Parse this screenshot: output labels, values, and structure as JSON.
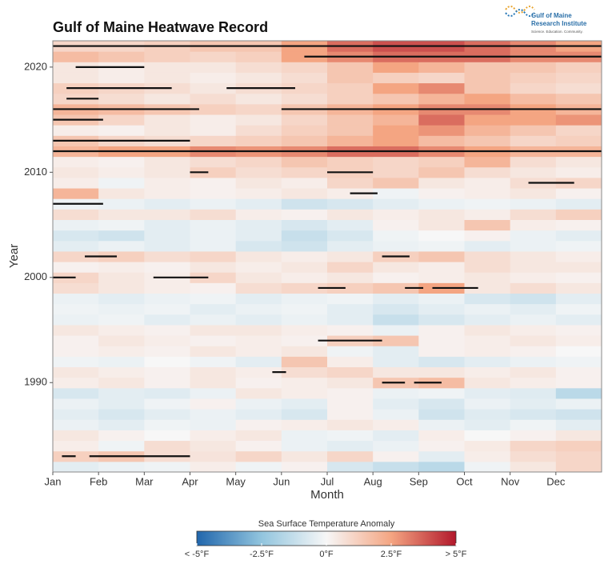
{
  "logo": {
    "line1": "Gulf of Maine",
    "line2": "Research Institute",
    "tagline": "Science. Education. Community."
  },
  "chart_data": {
    "type": "heatmap",
    "title": "Gulf of Maine Heatwave Record",
    "x_label": "Month",
    "y_label": "Year",
    "xlim": [
      0,
      12
    ],
    "xticks": [
      {
        "value": 0,
        "label": "Jan"
      },
      {
        "value": 1,
        "label": "Feb"
      },
      {
        "value": 2,
        "label": "Mar"
      },
      {
        "value": 3,
        "label": "Apr"
      },
      {
        "value": 4,
        "label": "May"
      },
      {
        "value": 5,
        "label": "Jun"
      },
      {
        "value": 6,
        "label": "Jul"
      },
      {
        "value": 7,
        "label": "Aug"
      },
      {
        "value": 8,
        "label": "Sep"
      },
      {
        "value": 9,
        "label": "Oct"
      },
      {
        "value": 10,
        "label": "Nov"
      },
      {
        "value": 11,
        "label": "Dec"
      }
    ],
    "ylim": [
      1981.5,
      2022.5
    ],
    "yticks": [
      1990,
      2000,
      2010,
      2020
    ],
    "years": [
      1982,
      1983,
      1984,
      1985,
      1986,
      1987,
      1988,
      1989,
      1990,
      1991,
      1992,
      1993,
      1994,
      1995,
      1996,
      1997,
      1998,
      1999,
      2000,
      2001,
      2002,
      2003,
      2004,
      2005,
      2006,
      2007,
      2008,
      2009,
      2010,
      2011,
      2012,
      2013,
      2014,
      2015,
      2016,
      2017,
      2018,
      2019,
      2020,
      2021,
      2022
    ],
    "values": [
      [
        -0.5,
        -0.3,
        -0.2,
        0.3,
        -0.2,
        0.2,
        -0.8,
        -1.2,
        -1.5,
        -0.2,
        0.5,
        1.0
      ],
      [
        1.2,
        1.5,
        0.8,
        0.6,
        1.0,
        0.5,
        1.0,
        0.2,
        -0.5,
        0.3,
        0.8,
        1.0
      ],
      [
        0.3,
        -0.2,
        0.8,
        0.5,
        0.2,
        -0.3,
        -0.5,
        -0.3,
        0.2,
        0.4,
        1.0,
        1.2
      ],
      [
        0.5,
        0.2,
        0.0,
        0.3,
        0.5,
        -0.3,
        -0.2,
        -0.5,
        0.3,
        0.0,
        0.2,
        0.5
      ],
      [
        -0.3,
        -0.5,
        -0.2,
        -0.3,
        0.2,
        0.3,
        0.5,
        0.3,
        -0.3,
        -0.5,
        -0.2,
        -0.5
      ],
      [
        -0.5,
        -0.8,
        -0.5,
        -0.3,
        -0.5,
        -0.8,
        0.2,
        -0.3,
        -1.0,
        -0.6,
        -0.8,
        -1.0
      ],
      [
        -0.3,
        -0.5,
        -0.2,
        0.2,
        -0.3,
        -0.5,
        0.2,
        -0.5,
        -0.8,
        -0.3,
        -0.5,
        -0.3
      ],
      [
        -0.8,
        -0.5,
        -0.6,
        -0.3,
        0.5,
        0.3,
        0.2,
        -0.3,
        -0.2,
        -0.5,
        -0.6,
        -1.5
      ],
      [
        0.3,
        0.5,
        0.2,
        0.5,
        0.2,
        0.3,
        0.5,
        1.5,
        1.8,
        0.5,
        0.3,
        0.2
      ],
      [
        0.5,
        0.3,
        0.2,
        0.5,
        0.3,
        0.8,
        1.0,
        0.5,
        0.5,
        0.3,
        0.5,
        0.2
      ],
      [
        -0.2,
        -0.3,
        0.0,
        -0.2,
        -0.5,
        1.5,
        0.3,
        -0.5,
        -0.8,
        -0.5,
        -0.3,
        -0.2
      ],
      [
        0.2,
        0.3,
        0.2,
        0.5,
        0.3,
        0.5,
        -0.2,
        -0.5,
        0.2,
        0.3,
        0.2,
        0.0
      ],
      [
        0.2,
        0.5,
        0.3,
        0.2,
        0.3,
        0.2,
        1.2,
        1.5,
        0.2,
        0.3,
        0.5,
        0.3
      ],
      [
        0.5,
        0.3,
        0.2,
        0.5,
        0.5,
        0.3,
        0.2,
        -0.3,
        0.2,
        0.5,
        0.3,
        0.2
      ],
      [
        -0.3,
        -0.2,
        -0.5,
        -0.3,
        -0.5,
        -0.3,
        -0.5,
        -1.2,
        -0.8,
        -0.5,
        -0.3,
        -0.5
      ],
      [
        -0.2,
        -0.3,
        -0.2,
        -0.5,
        -0.3,
        -0.2,
        -0.5,
        -0.8,
        -0.5,
        -0.3,
        -0.5,
        -0.2
      ],
      [
        -0.3,
        -0.5,
        -0.3,
        -0.2,
        -0.5,
        -0.3,
        -0.2,
        -0.5,
        -0.3,
        -0.8,
        -1.0,
        -0.5
      ],
      [
        0.8,
        0.5,
        0.3,
        0.2,
        0.8,
        1.0,
        1.2,
        1.5,
        2.5,
        0.5,
        0.8,
        0.5
      ],
      [
        1.0,
        0.5,
        0.3,
        1.0,
        0.5,
        0.3,
        0.5,
        0.2,
        0.3,
        0.5,
        0.3,
        0.2
      ],
      [
        0.2,
        0.3,
        0.2,
        0.5,
        0.3,
        0.5,
        1.0,
        0.5,
        0.3,
        0.8,
        0.5,
        0.5
      ],
      [
        1.0,
        1.2,
        0.8,
        1.0,
        0.5,
        0.3,
        0.5,
        1.2,
        1.5,
        0.8,
        0.5,
        0.3
      ],
      [
        -0.5,
        -0.3,
        -0.5,
        -0.3,
        -0.8,
        -1.0,
        -0.5,
        -0.3,
        -0.2,
        -0.5,
        -0.3,
        -0.2
      ],
      [
        -0.8,
        -1.0,
        -0.5,
        -0.3,
        -0.5,
        -1.2,
        -0.8,
        -0.2,
        0.0,
        0.2,
        -0.3,
        -0.5
      ],
      [
        -0.3,
        -0.2,
        -0.5,
        -0.3,
        -0.5,
        -0.8,
        -0.5,
        0.2,
        0.5,
        1.5,
        0.3,
        0.2
      ],
      [
        0.8,
        0.5,
        0.5,
        0.8,
        0.3,
        0.2,
        0.5,
        0.3,
        0.5,
        0.3,
        0.8,
        1.2
      ],
      [
        -0.2,
        -0.3,
        -0.5,
        -0.3,
        -0.5,
        -1.0,
        -0.8,
        -0.5,
        -0.3,
        -0.2,
        -0.3,
        -0.5
      ],
      [
        2.0,
        0.5,
        0.3,
        0.2,
        0.3,
        0.5,
        0.3,
        -0.2,
        0.2,
        0.3,
        0.5,
        0.2
      ],
      [
        0.3,
        -0.2,
        0.3,
        0.2,
        0.5,
        0.3,
        1.0,
        1.5,
        0.5,
        0.3,
        0.8,
        1.0
      ],
      [
        0.5,
        0.3,
        0.5,
        1.2,
        0.8,
        1.0,
        1.2,
        1.0,
        1.5,
        0.8,
        0.5,
        0.3
      ],
      [
        0.3,
        0.2,
        0.5,
        0.8,
        1.0,
        1.5,
        1.2,
        1.0,
        1.2,
        2.0,
        0.8,
        0.5
      ],
      [
        2.0,
        2.5,
        2.5,
        3.0,
        2.8,
        3.0,
        3.5,
        3.5,
        3.0,
        2.5,
        2.0,
        2.0
      ],
      [
        1.5,
        1.0,
        0.8,
        1.0,
        1.2,
        1.5,
        2.0,
        2.5,
        1.8,
        1.5,
        1.0,
        1.2
      ],
      [
        0.3,
        0.2,
        0.5,
        0.3,
        0.8,
        1.2,
        1.5,
        2.5,
        2.8,
        2.0,
        1.5,
        1.0
      ],
      [
        1.5,
        1.0,
        0.5,
        0.3,
        0.5,
        1.0,
        1.5,
        2.0,
        3.5,
        2.5,
        2.5,
        2.8
      ],
      [
        2.0,
        1.8,
        1.5,
        1.2,
        1.0,
        1.5,
        2.0,
        2.5,
        3.0,
        3.0,
        2.5,
        2.0
      ],
      [
        1.0,
        0.8,
        0.5,
        0.8,
        0.5,
        0.8,
        1.2,
        1.5,
        2.0,
        2.5,
        1.8,
        1.5
      ],
      [
        1.2,
        1.0,
        0.8,
        0.5,
        0.8,
        1.0,
        1.2,
        2.5,
        3.0,
        1.5,
        1.0,
        0.8
      ],
      [
        0.5,
        0.3,
        0.5,
        0.3,
        0.5,
        0.8,
        1.5,
        1.2,
        1.0,
        1.5,
        1.2,
        1.0
      ],
      [
        0.5,
        0.3,
        0.5,
        0.5,
        0.8,
        1.0,
        1.5,
        2.5,
        2.0,
        1.5,
        1.5,
        1.2
      ],
      [
        1.8,
        1.5,
        1.2,
        1.0,
        1.2,
        2.5,
        3.0,
        3.5,
        3.5,
        3.5,
        3.0,
        3.0
      ],
      [
        1.0,
        1.0,
        1.2,
        1.5,
        1.5,
        2.5,
        3.5,
        4.0,
        4.0,
        3.5,
        3.0,
        2.5
      ]
    ],
    "heatwaves": [
      {
        "year": 2022,
        "start": 0.0,
        "end": 12.0
      },
      {
        "year": 2021,
        "start": 5.5,
        "end": 12.0
      },
      {
        "year": 2020,
        "start": 0.5,
        "end": 2.0
      },
      {
        "year": 2018,
        "start": 0.3,
        "end": 2.6
      },
      {
        "year": 2018,
        "start": 3.8,
        "end": 5.3
      },
      {
        "year": 2017,
        "start": 0.3,
        "end": 1.0
      },
      {
        "year": 2016,
        "start": 0.0,
        "end": 3.2
      },
      {
        "year": 2016,
        "start": 5.0,
        "end": 12.0
      },
      {
        "year": 2015,
        "start": 0.0,
        "end": 1.1
      },
      {
        "year": 2013,
        "start": 0.0,
        "end": 3.0
      },
      {
        "year": 2012,
        "start": 0.0,
        "end": 12.0
      },
      {
        "year": 2010,
        "start": 3.0,
        "end": 3.4
      },
      {
        "year": 2010,
        "start": 6.0,
        "end": 7.0
      },
      {
        "year": 2009,
        "start": 10.4,
        "end": 11.4
      },
      {
        "year": 2008,
        "start": 6.5,
        "end": 7.1
      },
      {
        "year": 2007,
        "start": 0.0,
        "end": 1.1
      },
      {
        "year": 2002,
        "start": 0.7,
        "end": 1.4
      },
      {
        "year": 2002,
        "start": 7.2,
        "end": 7.8
      },
      {
        "year": 2000,
        "start": 0.0,
        "end": 0.5
      },
      {
        "year": 2000,
        "start": 2.2,
        "end": 3.4
      },
      {
        "year": 1999,
        "start": 5.8,
        "end": 6.4
      },
      {
        "year": 1999,
        "start": 7.7,
        "end": 8.1
      },
      {
        "year": 1999,
        "start": 8.3,
        "end": 9.3
      },
      {
        "year": 1994,
        "start": 5.8,
        "end": 7.2
      },
      {
        "year": 1991,
        "start": 4.8,
        "end": 5.1
      },
      {
        "year": 1990,
        "start": 7.2,
        "end": 7.7
      },
      {
        "year": 1990,
        "start": 7.9,
        "end": 8.5
      },
      {
        "year": 1983,
        "start": 0.2,
        "end": 0.5
      },
      {
        "year": 1983,
        "start": 0.8,
        "end": 3.0
      }
    ],
    "heatwave_color": "#111111",
    "color_scale": [
      "#2166ac",
      "#92c5de",
      "#f7f7f7",
      "#f4a582",
      "#b2182b"
    ],
    "colorbar": {
      "title": "Sea Surface Temperature Anomaly",
      "lim": [
        -5,
        5
      ],
      "ticks": [
        {
          "value": -5,
          "label": "< -5°F"
        },
        {
          "value": -2.5,
          "label": "-2.5°F"
        },
        {
          "value": 0,
          "label": "0°F"
        },
        {
          "value": 2.5,
          "label": "2.5°F"
        },
        {
          "value": 5,
          "label": "> 5°F"
        }
      ]
    }
  }
}
